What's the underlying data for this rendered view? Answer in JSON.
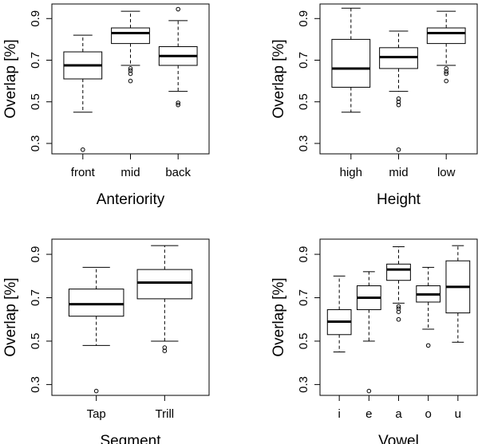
{
  "chart_data": [
    {
      "type": "boxplot",
      "xlabel": "Anteriority",
      "ylabel": "Overlap [%]",
      "ylim": [
        0.25,
        0.97
      ],
      "yticks": [
        "0.3",
        "0.5",
        "0.7",
        "0.9"
      ],
      "categories": [
        "front",
        "mid",
        "back"
      ],
      "boxes": [
        {
          "min": 0.45,
          "q1": 0.61,
          "median": 0.675,
          "q3": 0.74,
          "max": 0.82,
          "outliers": [
            0.27
          ]
        },
        {
          "min": 0.675,
          "q1": 0.78,
          "median": 0.83,
          "q3": 0.855,
          "max": 0.935,
          "outliers": [
            0.66,
            0.65,
            0.635,
            0.6
          ]
        },
        {
          "min": 0.55,
          "q1": 0.675,
          "median": 0.72,
          "q3": 0.765,
          "max": 0.89,
          "outliers": [
            0.945,
            0.495,
            0.485
          ]
        }
      ]
    },
    {
      "type": "boxplot",
      "xlabel": "Height",
      "ylabel": "Overlap [%]",
      "ylim": [
        0.25,
        0.97
      ],
      "yticks": [
        "0.3",
        "0.5",
        "0.7",
        "0.9"
      ],
      "categories": [
        "high",
        "mid",
        "low"
      ],
      "boxes": [
        {
          "min": 0.45,
          "q1": 0.57,
          "median": 0.66,
          "q3": 0.8,
          "max": 0.95,
          "outliers": []
        },
        {
          "min": 0.55,
          "q1": 0.66,
          "median": 0.715,
          "q3": 0.76,
          "max": 0.84,
          "outliers": [
            0.515,
            0.5,
            0.485,
            0.27
          ]
        },
        {
          "min": 0.675,
          "q1": 0.78,
          "median": 0.83,
          "q3": 0.855,
          "max": 0.935,
          "outliers": [
            0.66,
            0.645,
            0.635,
            0.6
          ]
        }
      ]
    },
    {
      "type": "boxplot",
      "xlabel": "Segment",
      "ylabel": "Overlap [%]",
      "ylim": [
        0.25,
        0.97
      ],
      "yticks": [
        "0.3",
        "0.5",
        "0.7",
        "0.9"
      ],
      "categories": [
        "Tap",
        "Trill"
      ],
      "boxes": [
        {
          "min": 0.48,
          "q1": 0.615,
          "median": 0.67,
          "q3": 0.74,
          "max": 0.84,
          "outliers": [
            0.27
          ]
        },
        {
          "min": 0.5,
          "q1": 0.695,
          "median": 0.77,
          "q3": 0.83,
          "max": 0.94,
          "outliers": [
            0.47,
            0.455
          ]
        }
      ]
    },
    {
      "type": "boxplot",
      "xlabel": "Vowel",
      "ylabel": "Overlap [%]",
      "ylim": [
        0.25,
        0.97
      ],
      "yticks": [
        "0.3",
        "0.5",
        "0.7",
        "0.9"
      ],
      "categories": [
        "i",
        "e",
        "a",
        "o",
        "u"
      ],
      "boxes": [
        {
          "min": 0.45,
          "q1": 0.53,
          "median": 0.59,
          "q3": 0.645,
          "max": 0.8,
          "outliers": []
        },
        {
          "min": 0.5,
          "q1": 0.645,
          "median": 0.7,
          "q3": 0.755,
          "max": 0.82,
          "outliers": [
            0.27
          ]
        },
        {
          "min": 0.675,
          "q1": 0.78,
          "median": 0.83,
          "q3": 0.855,
          "max": 0.935,
          "outliers": [
            0.66,
            0.65,
            0.635,
            0.6
          ]
        },
        {
          "min": 0.555,
          "q1": 0.68,
          "median": 0.715,
          "q3": 0.755,
          "max": 0.84,
          "outliers": [
            0.48
          ]
        },
        {
          "min": 0.495,
          "q1": 0.63,
          "median": 0.75,
          "q3": 0.87,
          "max": 0.94,
          "outliers": []
        }
      ]
    }
  ]
}
